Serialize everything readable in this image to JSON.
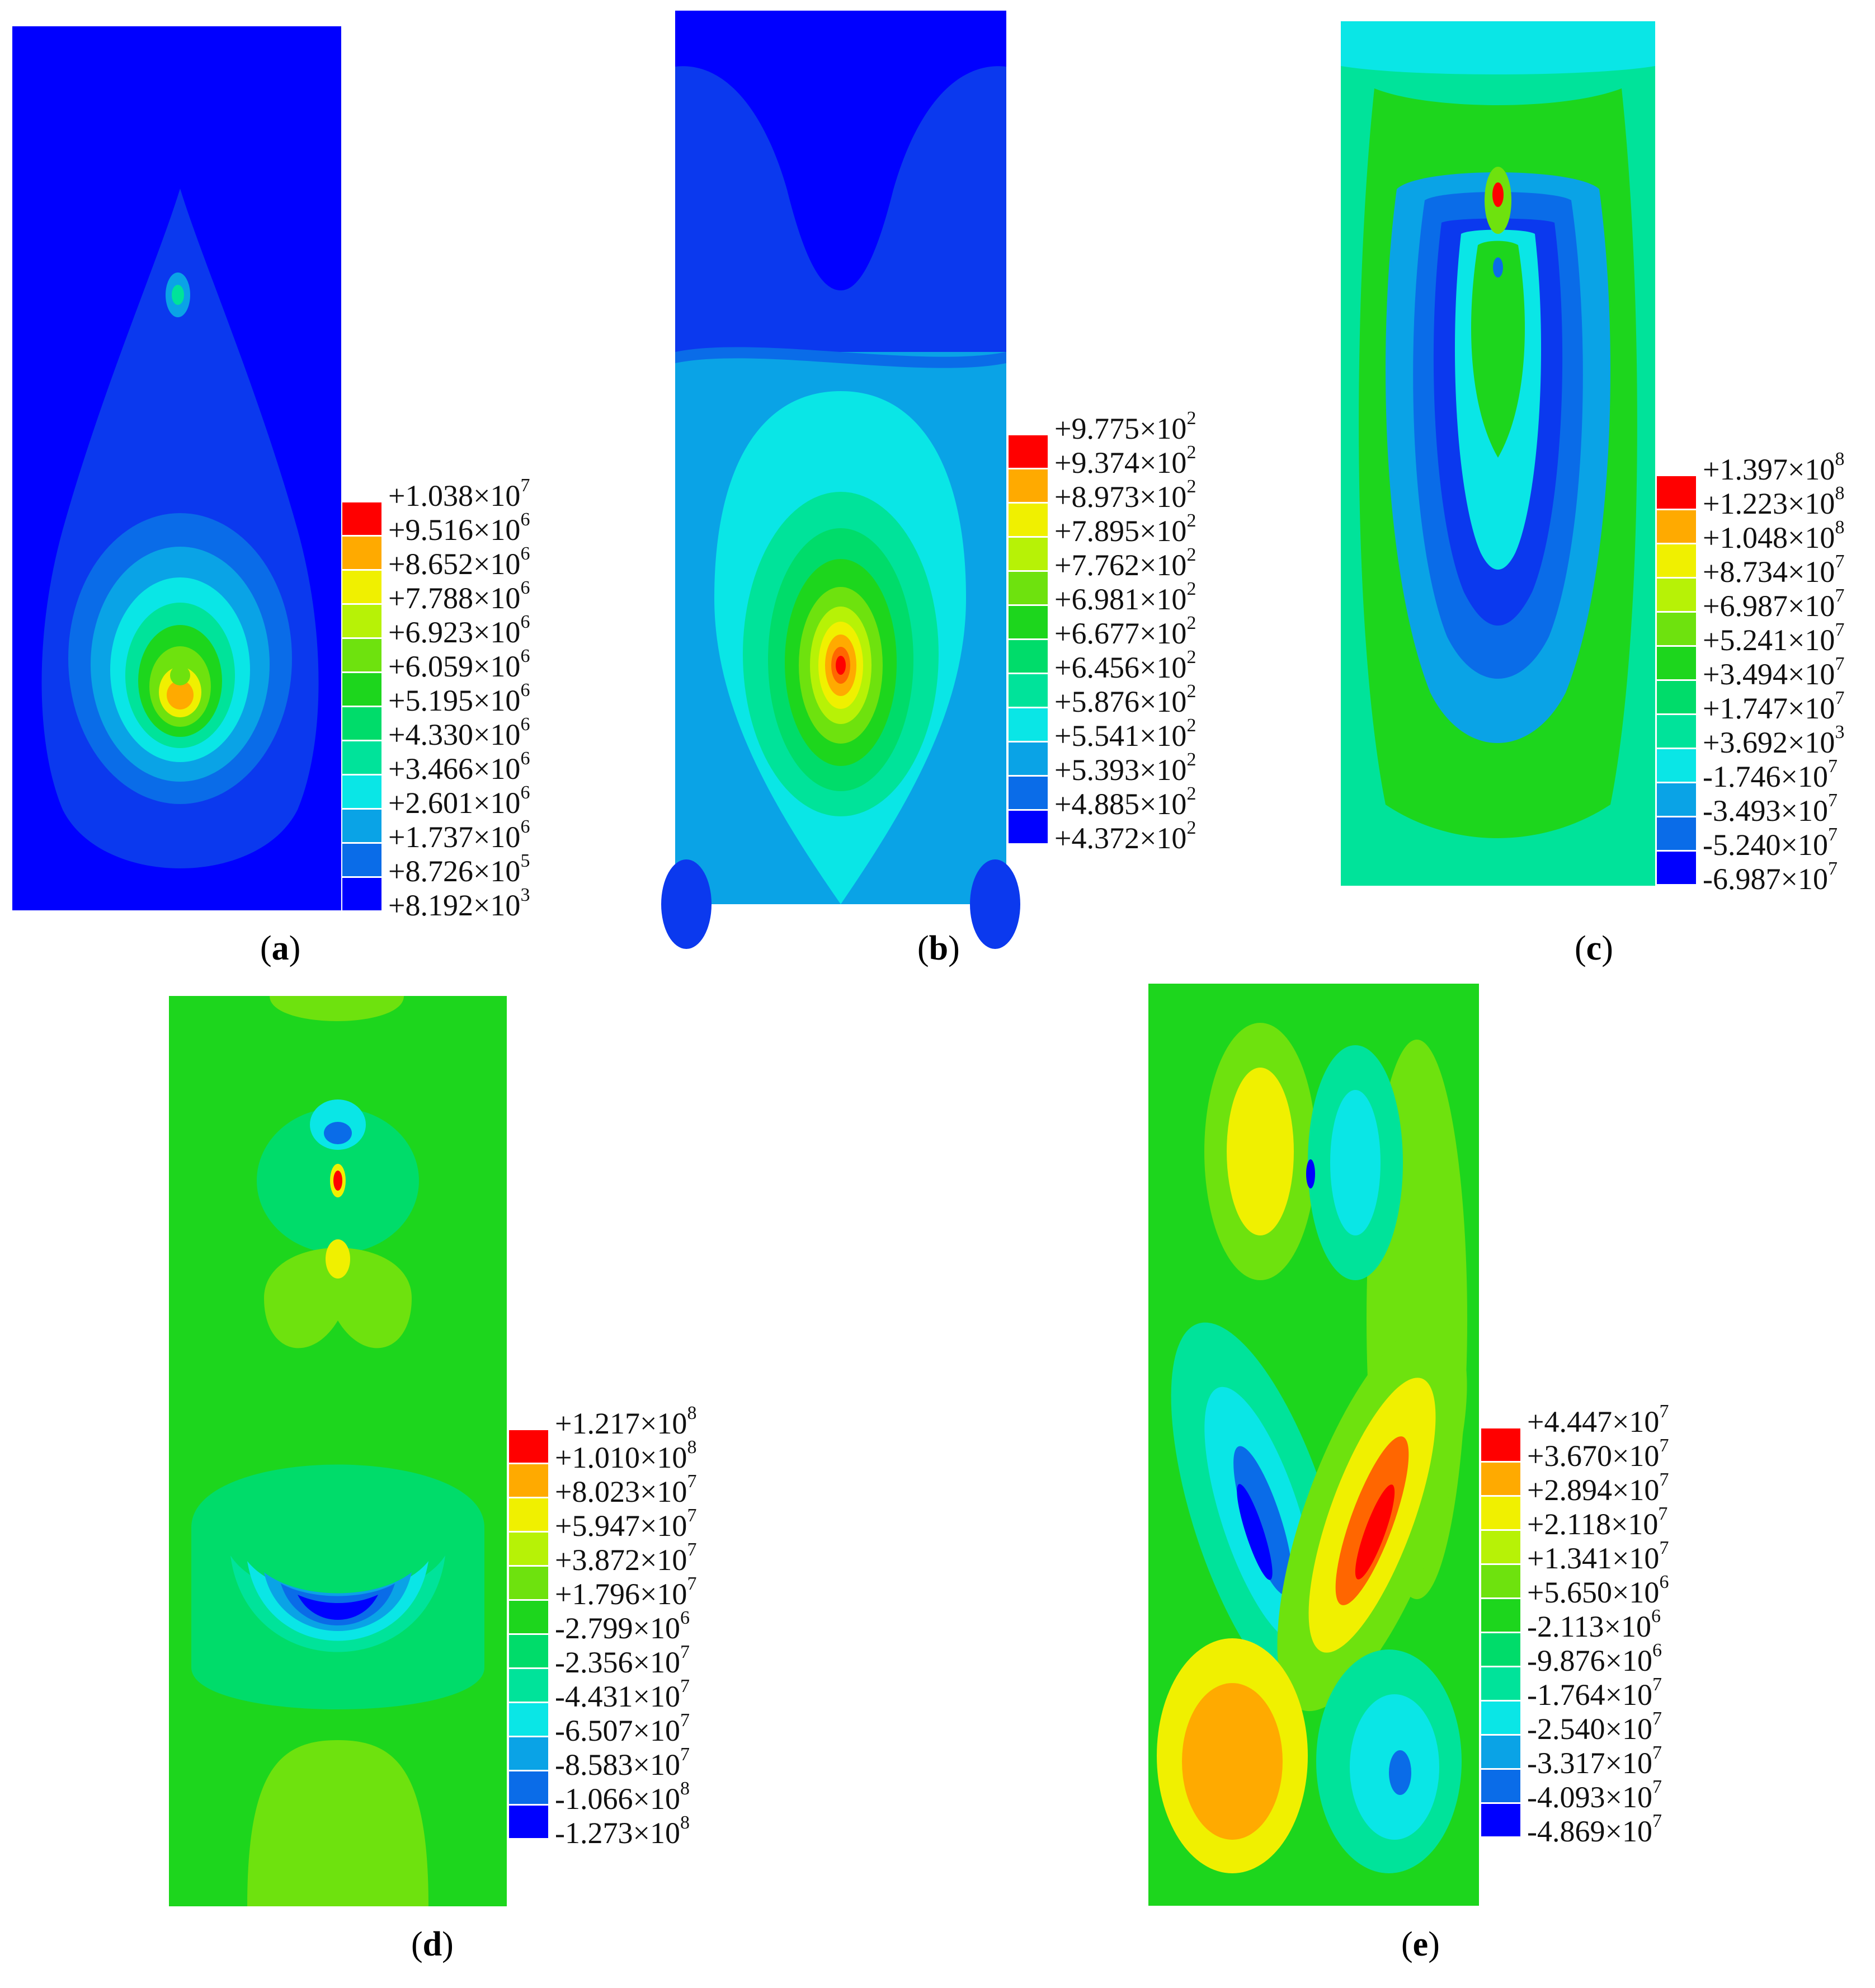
{
  "palette": [
    "#0000ff",
    "#0b39ee",
    "#0a6ce8",
    "#0aa3e6",
    "#0ae6e6",
    "#00e39a",
    "#00dc6a",
    "#1dd61d",
    "#6ee20e",
    "#b7f206",
    "#f0f000",
    "#ffaa00",
    "#ff6600",
    "#ff0000"
  ],
  "panels": [
    {
      "id": "a",
      "caption": "a",
      "legend": [
        {
          "m": "+1.038",
          "e": "7"
        },
        {
          "m": "+9.516",
          "e": "6"
        },
        {
          "m": "+8.652",
          "e": "6"
        },
        {
          "m": "+7.788",
          "e": "6"
        },
        {
          "m": "+6.923",
          "e": "6"
        },
        {
          "m": "+6.059",
          "e": "6"
        },
        {
          "m": "+5.195",
          "e": "6"
        },
        {
          "m": "+4.330",
          "e": "6"
        },
        {
          "m": "+3.466",
          "e": "6"
        },
        {
          "m": "+2.601",
          "e": "6"
        },
        {
          "m": "+1.737",
          "e": "6"
        },
        {
          "m": "+8.726",
          "e": "5"
        },
        {
          "m": "+8.192",
          "e": "3"
        }
      ]
    },
    {
      "id": "b",
      "caption": "b",
      "legend": [
        {
          "m": "+9.775",
          "e": "2"
        },
        {
          "m": "+9.374",
          "e": "2"
        },
        {
          "m": "+8.973",
          "e": "2"
        },
        {
          "m": "+7.895",
          "e": "2"
        },
        {
          "m": "+7.762",
          "e": "2"
        },
        {
          "m": "+6.981",
          "e": "2"
        },
        {
          "m": "+6.677",
          "e": "2"
        },
        {
          "m": "+6.456",
          "e": "2"
        },
        {
          "m": "+5.876",
          "e": "2"
        },
        {
          "m": "+5.541",
          "e": "2"
        },
        {
          "m": "+5.393",
          "e": "2"
        },
        {
          "m": "+4.885",
          "e": "2"
        },
        {
          "m": "+4.372",
          "e": "2"
        }
      ]
    },
    {
      "id": "c",
      "caption": "c",
      "legend": [
        {
          "m": "+1.397",
          "e": "8"
        },
        {
          "m": "+1.223",
          "e": "8"
        },
        {
          "m": "+1.048",
          "e": "8"
        },
        {
          "m": "+8.734",
          "e": "7"
        },
        {
          "m": "+6.987",
          "e": "7"
        },
        {
          "m": "+5.241",
          "e": "7"
        },
        {
          "m": "+3.494",
          "e": "7"
        },
        {
          "m": "+1.747",
          "e": "7"
        },
        {
          "m": "+3.692",
          "e": "3"
        },
        {
          "m": "-1.746",
          "e": "7"
        },
        {
          "m": "-3.493",
          "e": "7"
        },
        {
          "m": "-5.240",
          "e": "7"
        },
        {
          "m": "-6.987",
          "e": "7"
        }
      ]
    },
    {
      "id": "d",
      "caption": "d",
      "legend": [
        {
          "m": "+1.217",
          "e": "8"
        },
        {
          "m": "+1.010",
          "e": "8"
        },
        {
          "m": "+8.023",
          "e": "7"
        },
        {
          "m": "+5.947",
          "e": "7"
        },
        {
          "m": "+3.872",
          "e": "7"
        },
        {
          "m": "+1.796",
          "e": "7"
        },
        {
          "m": "-2.799",
          "e": "6"
        },
        {
          "m": "-2.356",
          "e": "7"
        },
        {
          "m": "-4.431",
          "e": "7"
        },
        {
          "m": "-6.507",
          "e": "7"
        },
        {
          "m": "-8.583",
          "e": "7"
        },
        {
          "m": "-1.066",
          "e": "8"
        },
        {
          "m": "-1.273",
          "e": "8"
        }
      ]
    },
    {
      "id": "e",
      "caption": "e",
      "legend": [
        {
          "m": "+4.447",
          "e": "7"
        },
        {
          "m": "+3.670",
          "e": "7"
        },
        {
          "m": "+2.894",
          "e": "7"
        },
        {
          "m": "+2.118",
          "e": "7"
        },
        {
          "m": "+1.341",
          "e": "7"
        },
        {
          "m": "+5.650",
          "e": "6"
        },
        {
          "m": "-2.113",
          "e": "6"
        },
        {
          "m": "-9.876",
          "e": "6"
        },
        {
          "m": "-1.764",
          "e": "7"
        },
        {
          "m": "-2.540",
          "e": "7"
        },
        {
          "m": "-3.317",
          "e": "7"
        },
        {
          "m": "-4.093",
          "e": "7"
        },
        {
          "m": "-4.869",
          "e": "7"
        }
      ]
    }
  ]
}
